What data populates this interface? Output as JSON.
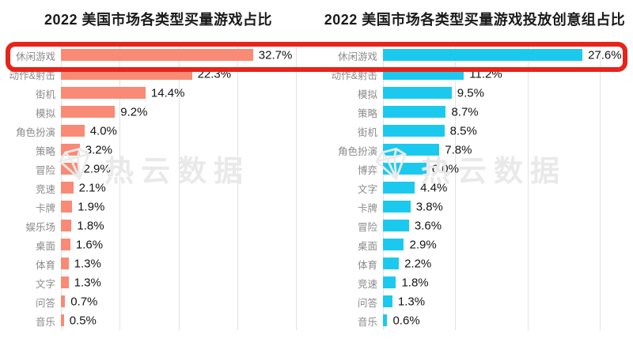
{
  "watermark": {
    "text": "热云数据",
    "logo": "gem-icon",
    "color": "#e9e9e9"
  },
  "highlight": {
    "color": "#e7241b",
    "target_row": "休闲游戏"
  },
  "chart_data": [
    {
      "type": "bar",
      "orientation": "horizontal",
      "title": "2022 美国市场各类型买量游戏占比",
      "bar_color": "#f98a75",
      "xlim": [
        0,
        40
      ],
      "grid_step": 10,
      "value_suffix": "%",
      "grid": true,
      "categories": [
        "休闲游戏",
        "动作&射击",
        "街机",
        "模拟",
        "角色扮演",
        "策略",
        "冒险",
        "竞速",
        "卡牌",
        "娱乐场",
        "桌面",
        "体育",
        "文字",
        "问答",
        "音乐"
      ],
      "values": [
        32.7,
        22.3,
        14.4,
        9.2,
        4.0,
        3.2,
        2.9,
        2.1,
        1.9,
        1.8,
        1.6,
        1.3,
        1.3,
        0.7,
        0.5
      ]
    },
    {
      "type": "bar",
      "orientation": "horizontal",
      "title": "2022 美国市场各类型买量游戏投放创意组占比",
      "bar_color": "#1cc9ee",
      "xlim": [
        0,
        30
      ],
      "grid_step": 10,
      "value_suffix": "%",
      "grid": true,
      "categories": [
        "休闲游戏",
        "动作&射击",
        "模拟",
        "策略",
        "街机",
        "角色扮演",
        "博弈",
        "文字",
        "卡牌",
        "冒险",
        "桌面",
        "体育",
        "竞速",
        "问答",
        "音乐"
      ],
      "values": [
        27.6,
        11.2,
        9.5,
        8.7,
        8.5,
        7.8,
        6.0,
        4.4,
        3.8,
        3.6,
        2.9,
        2.2,
        1.8,
        1.3,
        0.6
      ]
    }
  ]
}
